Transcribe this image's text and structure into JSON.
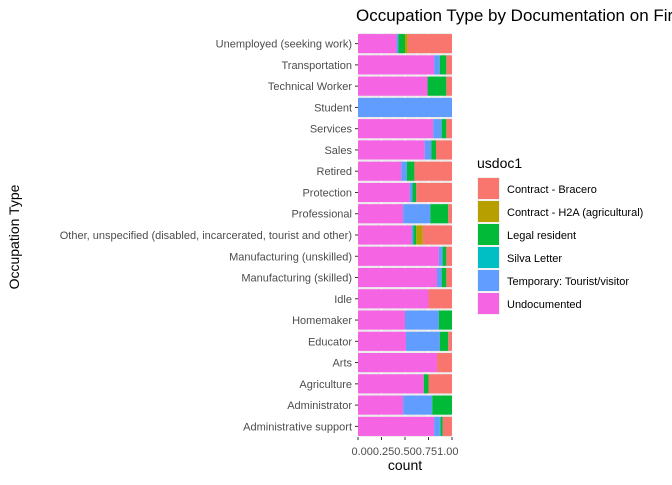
{
  "chart_data": {
    "type": "bar",
    "orientation": "horizontal",
    "stacked": "fill",
    "title": "Occupation Type by Documentation on Fir",
    "xlabel": "count",
    "ylabel": "Occupation Type",
    "xlim": [
      0,
      1
    ],
    "x_ticks": [
      "0.00",
      "0.25",
      "0.50",
      "0.75",
      "1.00"
    ],
    "x_ticks_rendered": "0.000.250.500.751.00",
    "grid": true,
    "legend_position": "right",
    "legend_title": "usdoc1",
    "categories": [
      "Unemployed (seeking work)",
      "Transportation",
      "Technical Worker",
      "Student",
      "Services",
      "Sales",
      "Retired",
      "Protection",
      "Professional",
      "Other, unspecified (disabled, incarcerated, tourist and other)",
      "Manufacturing (unskilled)",
      "Manufacturing (skilled)",
      "Idle",
      "Homemaker",
      "Educator",
      "Arts",
      "Agriculture",
      "Administrator",
      "Administrative support"
    ],
    "series": [
      {
        "name": "Contract - Bracero",
        "color": "#F8766D",
        "values": [
          0.47,
          0.06,
          0.06,
          0,
          0.06,
          0.17,
          0.4,
          0.38,
          0.04,
          0.31,
          0.06,
          0.06,
          0.25,
          0,
          0.04,
          0.16,
          0.25,
          0,
          0.1
        ]
      },
      {
        "name": "Contract - H2A (agricultural)",
        "color": "#B79F00",
        "values": [
          0.03,
          0,
          0,
          0,
          0,
          0,
          0,
          0,
          0,
          0.07,
          0,
          0,
          0,
          0,
          0,
          0,
          0,
          0,
          0
        ]
      },
      {
        "name": "Legal resident",
        "color": "#00BA38",
        "values": [
          0.07,
          0.07,
          0.2,
          0,
          0.05,
          0.05,
          0.08,
          0.04,
          0.19,
          0.03,
          0.04,
          0.05,
          0,
          0.14,
          0.09,
          0,
          0.05,
          0.21,
          0.02
        ]
      },
      {
        "name": "Silva Letter",
        "color": "#00BFC4",
        "values": [
          0,
          0,
          0,
          0,
          0,
          0,
          0,
          0,
          0,
          0,
          0,
          0,
          0,
          0,
          0,
          0,
          0,
          0,
          0.01
        ]
      },
      {
        "name": "Temporary: Tourist/visitor",
        "color": "#619CFF",
        "values": [
          0.02,
          0.06,
          0,
          1.0,
          0.09,
          0.07,
          0.06,
          0.03,
          0.29,
          0.02,
          0.04,
          0.05,
          0,
          0.36,
          0.36,
          0,
          0,
          0.31,
          0.06
        ]
      },
      {
        "name": "Undocumented",
        "color": "#F564E3",
        "values": [
          0.41,
          0.81,
          0.74,
          0,
          0.8,
          0.71,
          0.46,
          0.55,
          0.48,
          0.57,
          0.86,
          0.84,
          0.75,
          0.5,
          0.51,
          0.84,
          0.7,
          0.48,
          0.81
        ]
      }
    ]
  }
}
